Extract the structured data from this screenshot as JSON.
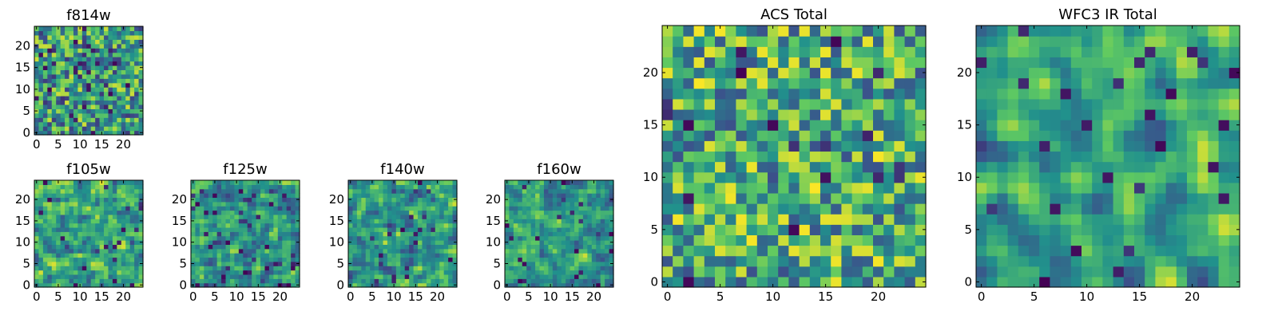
{
  "chart_data": [
    {
      "id": "f814w",
      "type": "heatmap",
      "title": "f814w",
      "size": 25,
      "xlim": [
        0,
        24
      ],
      "ylim": [
        0,
        24
      ],
      "colormap": "viridis",
      "xticks": [
        "0",
        "5",
        "10",
        "15",
        "20"
      ],
      "yticks": [
        "0",
        "5",
        "10",
        "15",
        "20"
      ],
      "seed": 11,
      "smooth": 0,
      "bias": 0.55,
      "dark": 0.06
    },
    {
      "id": "f105w",
      "type": "heatmap",
      "title": "f105w",
      "size": 25,
      "xlim": [
        0,
        24
      ],
      "ylim": [
        0,
        24
      ],
      "colormap": "viridis",
      "xticks": [
        "0",
        "5",
        "10",
        "15",
        "20"
      ],
      "yticks": [
        "0",
        "5",
        "10",
        "15",
        "20"
      ],
      "seed": 23,
      "smooth": 1,
      "bias": 0.58,
      "dark": 0.03
    },
    {
      "id": "f125w",
      "type": "heatmap",
      "title": "f125w",
      "size": 25,
      "xlim": [
        0,
        24
      ],
      "ylim": [
        0,
        24
      ],
      "colormap": "viridis",
      "xticks": [
        "0",
        "5",
        "10",
        "15",
        "20"
      ],
      "yticks": [
        "0",
        "5",
        "10",
        "15",
        "20"
      ],
      "seed": 37,
      "smooth": 1,
      "bias": 0.5,
      "dark": 0.05
    },
    {
      "id": "f140w",
      "type": "heatmap",
      "title": "f140w",
      "size": 25,
      "xlim": [
        0,
        24
      ],
      "ylim": [
        0,
        24
      ],
      "colormap": "viridis",
      "xticks": [
        "0",
        "5",
        "10",
        "15",
        "20"
      ],
      "yticks": [
        "0",
        "5",
        "10",
        "15",
        "20"
      ],
      "seed": 41,
      "smooth": 1,
      "bias": 0.55,
      "dark": 0.03
    },
    {
      "id": "f160w",
      "type": "heatmap",
      "title": "f160w",
      "size": 25,
      "xlim": [
        0,
        24
      ],
      "ylim": [
        0,
        24
      ],
      "colormap": "viridis",
      "xticks": [
        "0",
        "5",
        "10",
        "15",
        "20"
      ],
      "yticks": [
        "0",
        "5",
        "10",
        "15",
        "20"
      ],
      "seed": 53,
      "smooth": 1,
      "bias": 0.55,
      "dark": 0.04
    },
    {
      "id": "acs",
      "type": "heatmap",
      "title": "ACS Total",
      "size": 25,
      "xlim": [
        0,
        24
      ],
      "ylim": [
        0,
        24
      ],
      "colormap": "viridis",
      "xticks": [
        "0",
        "5",
        "10",
        "15",
        "20"
      ],
      "yticks": [
        "0",
        "5",
        "10",
        "15",
        "20"
      ],
      "seed": 67,
      "smooth": 0,
      "bias": 0.62,
      "dark": 0.025
    },
    {
      "id": "wfc3",
      "type": "heatmap",
      "title": "WFC3 IR Total",
      "size": 25,
      "xlim": [
        0,
        24
      ],
      "ylim": [
        0,
        24
      ],
      "colormap": "viridis",
      "xticks": [
        "0",
        "5",
        "10",
        "15",
        "20"
      ],
      "yticks": [
        "0",
        "5",
        "10",
        "15",
        "20"
      ],
      "seed": 79,
      "smooth": 2,
      "bias": 0.56,
      "dark": 0.03
    }
  ],
  "colors": {
    "viridis": [
      "#440154",
      "#3b528b",
      "#21918c",
      "#5ec962",
      "#fde725"
    ]
  }
}
